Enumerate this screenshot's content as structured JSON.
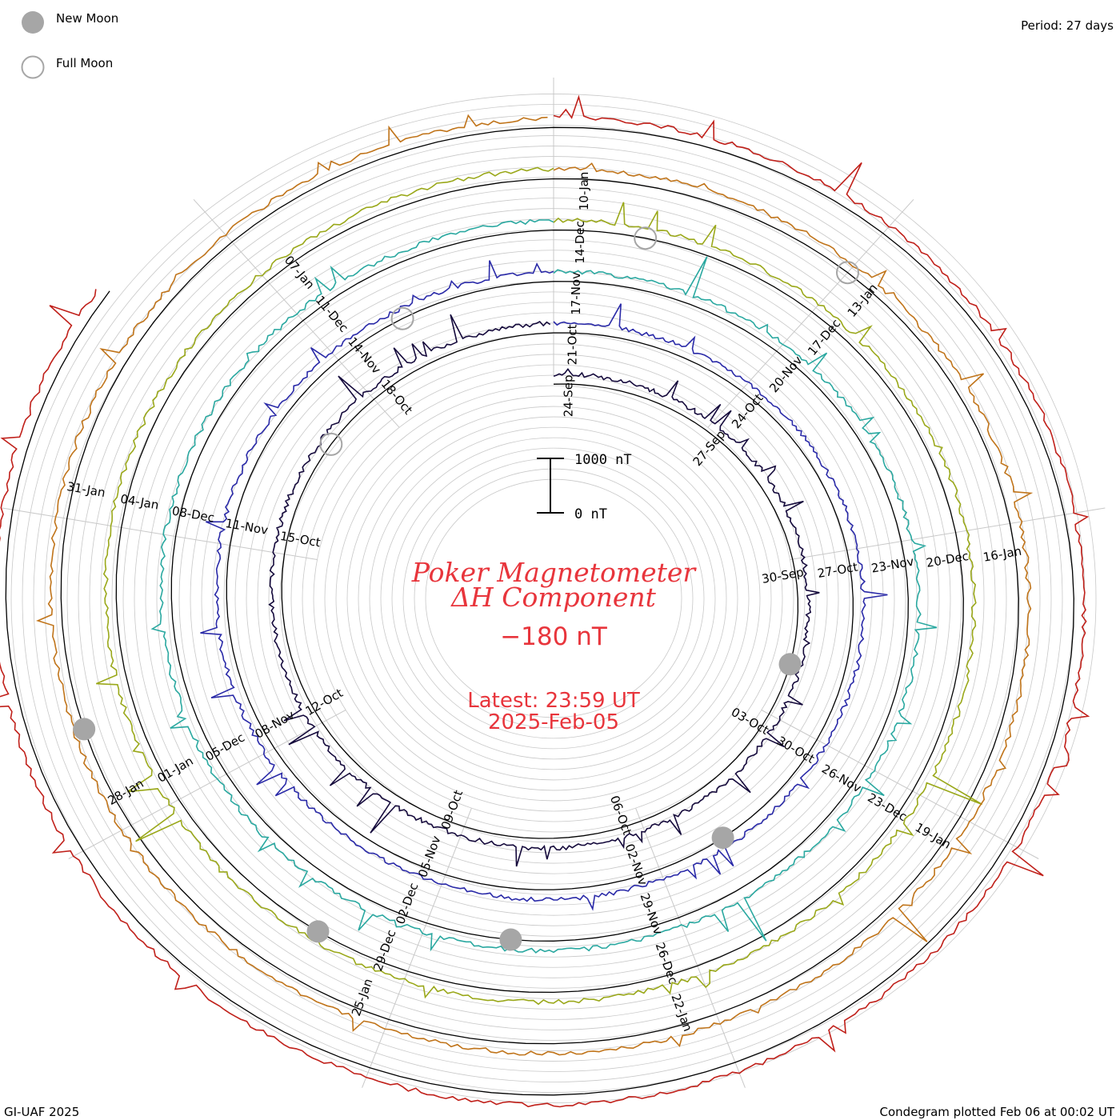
{
  "legend": {
    "new_moon_label": "New Moon",
    "full_moon_label": "Full Moon"
  },
  "period_label": "Period: 27 days",
  "center": {
    "title_line1": "Poker Magnetometer",
    "title_line2": "ΔH Component",
    "current_value": "−180 nT",
    "latest_time": "Latest: 23:59 UT",
    "latest_date": "2025-Feb-05"
  },
  "scale_bar": {
    "top_label": "1000 nT",
    "bottom_label": "0 nT"
  },
  "footer": {
    "left": "GI-UAF 2025",
    "right": "Condegram plotted Feb 06 at 00:02 UT"
  },
  "colors": {
    "moon_new": "#a6a6a6",
    "moon_full_stroke": "#a6a6a6",
    "grid": "#c8c8c8",
    "baseline": "#000000",
    "title_red": "#e8353c"
  },
  "chart_data": {
    "type": "line",
    "description_type": "condegram (spiral time series, period 27 days)",
    "period_days": 27,
    "cycles": [
      {
        "name": "cycle-1",
        "color": "#150a3c",
        "date_labels": [
          "24-Sep",
          "27-Sep",
          "30-Sep",
          "03-Oct",
          "06-Oct",
          "09-Oct",
          "12-Oct",
          "15-Oct",
          "18-Oct"
        ]
      },
      {
        "name": "cycle-2",
        "color": "#2a2aa8",
        "date_labels": [
          "21-Oct",
          "24-Oct",
          "27-Oct",
          "30-Oct",
          "02-Nov",
          "05-Nov",
          "08-Nov",
          "11-Nov",
          "14-Nov"
        ]
      },
      {
        "name": "cycle-3",
        "color": "#2aa8a0",
        "date_labels": [
          "17-Nov",
          "20-Nov",
          "23-Nov",
          "26-Nov",
          "29-Nov",
          "02-Dec",
          "05-Dec",
          "08-Dec",
          "11-Dec"
        ]
      },
      {
        "name": "cycle-4",
        "color": "#9aa81a",
        "date_labels": [
          "14-Dec",
          "17-Dec",
          "20-Dec",
          "23-Dec",
          "26-Dec",
          "29-Dec",
          "01-Jan",
          "04-Jan",
          "07-Jan"
        ]
      },
      {
        "name": "cycle-5",
        "color": "#c0741a",
        "date_labels": [
          "10-Jan",
          "13-Jan",
          "16-Jan",
          "19-Jan",
          "22-Jan",
          "25-Jan",
          "28-Jan",
          "31-Jan"
        ]
      },
      {
        "name": "cycle-6",
        "color": "#c0201a",
        "date_labels": []
      }
    ],
    "date_label_sequence": [
      "24-Sep",
      "27-Sep",
      "30-Sep",
      "03-Oct",
      "06-Oct",
      "09-Oct",
      "12-Oct",
      "15-Oct",
      "18-Oct",
      "21-Oct",
      "24-Oct",
      "27-Oct",
      "30-Oct",
      "02-Nov",
      "05-Nov",
      "08-Nov",
      "11-Nov",
      "14-Nov",
      "17-Nov",
      "20-Nov",
      "23-Nov",
      "26-Nov",
      "29-Nov",
      "02-Dec",
      "05-Dec",
      "08-Dec",
      "11-Dec",
      "14-Dec",
      "17-Dec",
      "20-Dec",
      "23-Dec",
      "26-Dec",
      "29-Dec",
      "01-Jan",
      "04-Jan",
      "07-Jan",
      "10-Jan",
      "13-Jan",
      "16-Jan",
      "19-Jan",
      "22-Jan",
      "25-Jan",
      "28-Jan",
      "31-Jan"
    ],
    "scale": {
      "ylabel_top": "1000 nT",
      "ylabel_bottom": "0 nT",
      "ylim": [
        0,
        1000
      ]
    },
    "moon_phases": {
      "new_moon_dates": [
        "2024-Oct-02",
        "2024-Nov-01",
        "2024-Dec-01",
        "2024-Dec-30",
        "2025-Jan-29"
      ],
      "full_moon_dates": [
        "2024-Oct-17",
        "2024-Nov-15",
        "2024-Dec-15",
        "2025-Jan-13"
      ]
    },
    "grid": true
  }
}
